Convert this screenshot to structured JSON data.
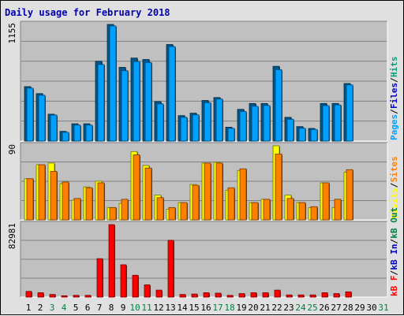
{
  "chart_data": {
    "title": "Daily usage for February 2018",
    "type": "bar",
    "categories": [
      "1",
      "2",
      "3",
      "4",
      "5",
      "6",
      "7",
      "8",
      "9",
      "10",
      "11",
      "12",
      "13",
      "14",
      "15",
      "16",
      "17",
      "18",
      "19",
      "20",
      "21",
      "22",
      "23",
      "24",
      "25",
      "26",
      "27",
      "28",
      "29",
      "30",
      "31"
    ],
    "weekend_categories": [
      "3",
      "4",
      "10",
      "11",
      "17",
      "18",
      "24",
      "25",
      "31"
    ],
    "colors": {
      "weekday_label": "#000000",
      "weekend_label": "#008040",
      "plot_bg": "#c0c0c0",
      "grid": "#808080",
      "hits": "#00a0ff",
      "files": "#0000c0",
      "pages": "#00a0ff",
      "visits": "#ffff00",
      "sites": "#ff8000",
      "kb_f": "#ff0000",
      "kb_in": "#0000c0",
      "kb_out": "#008040"
    },
    "panels": [
      {
        "name": "hits",
        "max_label": "1155",
        "ymax": 1155,
        "legend": [
          {
            "label": "Pages",
            "color": "#00a0ff"
          },
          {
            "label": "Files",
            "color": "#0000c0"
          },
          {
            "label": "Hits",
            "color": "#00a080"
          }
        ],
        "series": [
          {
            "name": "Hits",
            "values": [
              539,
              470,
              266,
              96,
              171,
              171,
              790,
              1155,
              730,
              822,
              808,
              391,
              956,
              252,
              276,
              402,
              431,
              137,
              314,
              372,
              372,
              740,
              235,
              143,
              125,
              372,
              372,
              570,
              0,
              0,
              0
            ]
          },
          {
            "name": "Files",
            "values": [
              524,
              454,
              258,
              87,
              158,
              158,
              758,
              1140,
              697,
              788,
              778,
              368,
              936,
              235,
              260,
              380,
              416,
              126,
              293,
              345,
              352,
              707,
              216,
              127,
              115,
              351,
              358,
              556,
              0,
              0,
              0
            ]
          }
        ]
      },
      {
        "name": "visits",
        "max_label": "90",
        "ymax": 90,
        "legend": [
          {
            "label": "Visits",
            "color": "#ffff00"
          },
          {
            "label": "Sites",
            "color": "#ff8000"
          }
        ],
        "series": [
          {
            "name": "Visits",
            "values": [
              50,
              67,
              69,
              44,
              24,
              40,
              47,
              15,
              20,
              83,
              66,
              30,
              13,
              21,
              43,
              69,
              70,
              36,
              60,
              21,
              25,
              90,
              30,
              21,
              15,
              45,
              15,
              58,
              0,
              0,
              0
            ]
          },
          {
            "name": "Sites",
            "values": [
              50,
              67,
              59,
              46,
              26,
              39,
              45,
              15,
              25,
              79,
              63,
              27,
              15,
              21,
              42,
              69,
              69,
              39,
              62,
              21,
              25,
              80,
              26,
              21,
              16,
              45,
              25,
              61,
              0,
              0,
              0
            ]
          }
        ]
      },
      {
        "name": "kbytes",
        "max_label": "82981",
        "ymax": 82981,
        "legend": [
          {
            "label": "kB F",
            "color": "#ff0000"
          },
          {
            "label": "kB In",
            "color": "#0000c0"
          },
          {
            "label": "kB Out",
            "color": "#008040"
          }
        ],
        "series": [
          {
            "name": "kB F",
            "values": [
              6500,
              5000,
              3000,
              1500,
              2000,
              2000,
              44000,
              82981,
              37000,
              25000,
              14000,
              8000,
              65000,
              3000,
              3500,
              5000,
              4500,
              2000,
              4000,
              5000,
              5000,
              8000,
              2500,
              2500,
              2500,
              5000,
              4000,
              6000,
              0,
              0,
              0
            ]
          }
        ]
      }
    ]
  }
}
